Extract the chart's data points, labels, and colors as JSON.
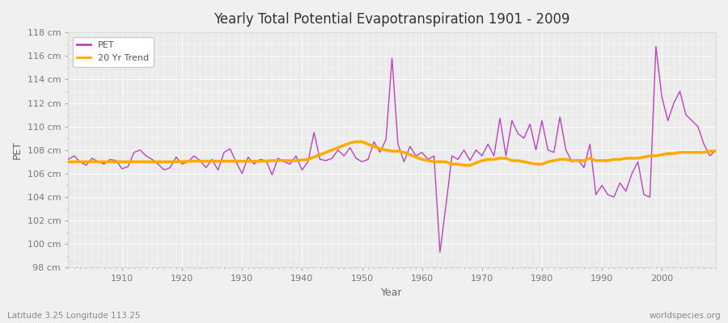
{
  "title": "Yearly Total Potential Evapotranspiration 1901 - 2009",
  "xlabel": "Year",
  "ylabel": "PET",
  "subtitle_left": "Latitude 3.25 Longitude 113.25",
  "subtitle_right": "worldspecies.org",
  "pet_color": "#bb44bb",
  "trend_color": "#ffaa00",
  "fig_bg_color": "#f0f0f0",
  "plot_bg_color": "#ebebeb",
  "years": [
    1901,
    1902,
    1903,
    1904,
    1905,
    1906,
    1907,
    1908,
    1909,
    1910,
    1911,
    1912,
    1913,
    1914,
    1915,
    1916,
    1917,
    1918,
    1919,
    1920,
    1921,
    1922,
    1923,
    1924,
    1925,
    1926,
    1927,
    1928,
    1929,
    1930,
    1931,
    1932,
    1933,
    1934,
    1935,
    1936,
    1937,
    1938,
    1939,
    1940,
    1941,
    1942,
    1943,
    1944,
    1945,
    1946,
    1947,
    1948,
    1949,
    1950,
    1951,
    1952,
    1953,
    1954,
    1955,
    1956,
    1957,
    1958,
    1959,
    1960,
    1961,
    1962,
    1963,
    1964,
    1965,
    1966,
    1967,
    1968,
    1969,
    1970,
    1971,
    1972,
    1973,
    1974,
    1975,
    1976,
    1977,
    1978,
    1979,
    1980,
    1981,
    1982,
    1983,
    1984,
    1985,
    1986,
    1987,
    1988,
    1989,
    1990,
    1991,
    1992,
    1993,
    1994,
    1995,
    1996,
    1997,
    1998,
    1999,
    2000,
    2001,
    2002,
    2003,
    2004,
    2005,
    2006,
    2007,
    2008,
    2009
  ],
  "pet_values": [
    107.2,
    107.5,
    107.0,
    106.7,
    107.3,
    107.0,
    106.8,
    107.2,
    107.1,
    106.4,
    106.6,
    107.8,
    108.0,
    107.5,
    107.2,
    106.8,
    106.3,
    106.5,
    107.4,
    106.8,
    107.0,
    107.5,
    107.1,
    106.5,
    107.2,
    106.3,
    107.8,
    108.1,
    107.0,
    106.0,
    107.4,
    106.8,
    107.2,
    107.1,
    105.9,
    107.3,
    107.0,
    106.8,
    107.5,
    106.3,
    107.0,
    109.5,
    107.2,
    107.1,
    107.3,
    108.0,
    107.5,
    108.2,
    107.3,
    107.0,
    107.2,
    108.7,
    107.8,
    108.9,
    115.8,
    108.5,
    107.0,
    108.3,
    107.5,
    107.8,
    107.2,
    107.5,
    99.3,
    103.3,
    107.5,
    107.2,
    108.0,
    107.1,
    108.0,
    107.5,
    108.5,
    107.5,
    110.7,
    107.5,
    110.5,
    109.4,
    109.0,
    110.2,
    108.0,
    110.5,
    108.0,
    107.8,
    110.8,
    108.0,
    107.0,
    107.2,
    106.5,
    108.5,
    104.2,
    105.0,
    104.2,
    104.0,
    105.2,
    104.5,
    106.0,
    107.0,
    104.2,
    104.0,
    116.8,
    112.5,
    110.5,
    112.0,
    113.0,
    111.0,
    110.5,
    110.0,
    108.5,
    107.5,
    108.0
  ],
  "trend_values": [
    107.0,
    107.0,
    107.0,
    107.0,
    107.0,
    107.0,
    107.0,
    107.0,
    107.0,
    107.0,
    107.0,
    107.0,
    107.0,
    107.0,
    107.0,
    107.0,
    107.0,
    107.0,
    107.0,
    107.0,
    107.05,
    107.05,
    107.05,
    107.05,
    107.05,
    107.05,
    107.05,
    107.05,
    107.05,
    107.05,
    107.05,
    107.05,
    107.05,
    107.05,
    107.1,
    107.1,
    107.1,
    107.1,
    107.1,
    107.15,
    107.2,
    107.4,
    107.6,
    107.8,
    108.0,
    108.2,
    108.4,
    108.6,
    108.7,
    108.7,
    108.5,
    108.3,
    108.1,
    108.0,
    107.9,
    107.9,
    107.8,
    107.6,
    107.4,
    107.2,
    107.1,
    107.0,
    107.0,
    107.0,
    106.8,
    106.8,
    106.7,
    106.7,
    106.9,
    107.1,
    107.2,
    107.2,
    107.3,
    107.3,
    107.1,
    107.1,
    107.0,
    106.9,
    106.8,
    106.8,
    107.0,
    107.1,
    107.2,
    107.2,
    107.1,
    107.1,
    107.1,
    107.3,
    107.1,
    107.1,
    107.1,
    107.2,
    107.2,
    107.3,
    107.3,
    107.3,
    107.4,
    107.5,
    107.5,
    107.6,
    107.7,
    107.7,
    107.8,
    107.8,
    107.8,
    107.8,
    107.8,
    107.9,
    107.9
  ],
  "ylim": [
    98,
    118
  ],
  "yticks": [
    98,
    100,
    102,
    104,
    106,
    108,
    110,
    112,
    114,
    116,
    118
  ],
  "ytick_labels": [
    "98 cm",
    "100 cm",
    "102 cm",
    "104 cm",
    "106 cm",
    "108 cm",
    "110 cm",
    "112 cm",
    "114 cm",
    "116 cm",
    "118 cm"
  ],
  "xlim": [
    1901,
    2009
  ],
  "xticks": [
    1910,
    1920,
    1930,
    1940,
    1950,
    1960,
    1970,
    1980,
    1990,
    2000
  ]
}
